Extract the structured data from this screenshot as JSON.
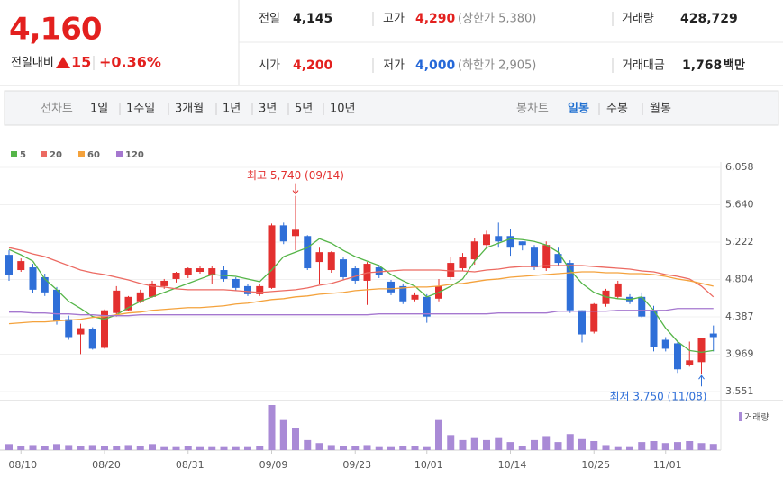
{
  "quote": {
    "price": "4,160",
    "change_label": "전일대비",
    "change": "15",
    "change_pct": "+0.36%"
  },
  "info": [
    {
      "label": "전일",
      "value": "4,145"
    },
    {
      "label": "고가",
      "value": "4,290",
      "note": "(상한가 5,380)"
    },
    {
      "label": "거래량",
      "value": "428,729"
    },
    {
      "label": "시가",
      "value": "4,200"
    },
    {
      "label": "저가",
      "value": "4,000",
      "note": "(하한가 2,905)"
    },
    {
      "label": "거래대금",
      "value": "1,768",
      "unit": "백만"
    }
  ],
  "tabs": {
    "line_label": "선차트",
    "line_periods": [
      "1일",
      "1주일",
      "3개월",
      "1년",
      "3년",
      "5년",
      "10년"
    ],
    "candle_label": "봉차트",
    "candle_periods": [
      "일봉",
      "주봉",
      "월봉"
    ]
  },
  "chart_data": {
    "type": "candlestick",
    "up_color": "#e3302f",
    "down_color": "#2f6fd8",
    "volume_color": "#a98ad6",
    "volume_label": "거래량",
    "categories": [
      null,
      "08/10",
      null,
      null,
      null,
      null,
      null,
      null,
      "08/20",
      null,
      null,
      null,
      null,
      null,
      null,
      "08/31",
      null,
      null,
      null,
      null,
      null,
      null,
      "09/09",
      null,
      null,
      null,
      null,
      null,
      null,
      "09/23",
      null,
      null,
      null,
      null,
      null,
      "10/01",
      null,
      null,
      null,
      null,
      null,
      null,
      "10/14",
      null,
      null,
      null,
      null,
      null,
      null,
      "10/25",
      null,
      null,
      null,
      null,
      null,
      "11/01",
      null,
      null,
      null,
      null
    ],
    "open": [
      5080,
      4910,
      4940,
      4830,
      4690,
      4360,
      4190,
      4250,
      4040,
      4430,
      4460,
      4560,
      4610,
      4730,
      4810,
      4850,
      4890,
      4860,
      4910,
      4810,
      4730,
      4640,
      4710,
      5410,
      5290,
      5290,
      5000,
      4910,
      5030,
      4930,
      4790,
      4940,
      4780,
      4730,
      4580,
      4610,
      4590,
      4830,
      4930,
      5030,
      5190,
      5290,
      5290,
      5230,
      5160,
      4930,
      5090,
      4990,
      4460,
      4220,
      4530,
      4610,
      4610,
      4610,
      4460,
      4130,
      4090,
      3850,
      3880,
      4200
    ],
    "high": [
      5130,
      5040,
      4980,
      4870,
      4720,
      4400,
      4310,
      4270,
      4470,
      4730,
      4620,
      4690,
      4790,
      4810,
      4890,
      4940,
      4950,
      4950,
      4960,
      4830,
      4750,
      4750,
      5430,
      5440,
      5740,
      5300,
      5160,
      5120,
      5050,
      4960,
      5000,
      4970,
      4800,
      4760,
      4660,
      4640,
      4810,
      5060,
      5100,
      5270,
      5350,
      5440,
      5370,
      5230,
      5190,
      5230,
      5160,
      5020,
      4460,
      4540,
      4700,
      4790,
      4640,
      4660,
      4510,
      4160,
      4110,
      4110,
      4150,
      4290
    ],
    "low": [
      4790,
      4890,
      4650,
      4620,
      4300,
      4130,
      3970,
      4020,
      4030,
      4390,
      4450,
      4540,
      4600,
      4700,
      4770,
      4820,
      4870,
      4750,
      4780,
      4680,
      4620,
      4620,
      4700,
      5200,
      5130,
      4910,
      4750,
      4880,
      4800,
      4760,
      4520,
      4820,
      4630,
      4530,
      4560,
      4320,
      4560,
      4800,
      4900,
      4970,
      5170,
      5160,
      5070,
      5130,
      4910,
      4900,
      4950,
      4430,
      4100,
      4200,
      4500,
      4590,
      4530,
      4380,
      4000,
      4000,
      3760,
      3830,
      3750,
      4000
    ],
    "close": [
      4860,
      5010,
      4690,
      4660,
      4340,
      4160,
      4260,
      4030,
      4460,
      4680,
      4610,
      4660,
      4760,
      4790,
      4880,
      4930,
      4930,
      4930,
      4810,
      4710,
      4640,
      4730,
      5410,
      5230,
      5360,
      4930,
      5110,
      5110,
      4830,
      4790,
      4980,
      4850,
      4660,
      4560,
      4630,
      4390,
      4730,
      4990,
      5060,
      5230,
      5310,
      5230,
      5160,
      5190,
      4940,
      5190,
      4990,
      4460,
      4190,
      4530,
      4680,
      4760,
      4560,
      4390,
      4050,
      4030,
      3800,
      3900,
      4150,
      4160
    ],
    "volume": [
      420000,
      280000,
      350000,
      280000,
      420000,
      350000,
      280000,
      350000,
      280000,
      280000,
      350000,
      280000,
      420000,
      210000,
      210000,
      280000,
      210000,
      210000,
      210000,
      210000,
      210000,
      280000,
      3150000,
      2100000,
      1540000,
      700000,
      490000,
      350000,
      280000,
      280000,
      350000,
      210000,
      210000,
      280000,
      280000,
      210000,
      2100000,
      1050000,
      700000,
      840000,
      700000,
      840000,
      560000,
      280000,
      700000,
      980000,
      560000,
      1120000,
      770000,
      630000,
      350000,
      210000,
      210000,
      560000,
      630000,
      490000,
      560000,
      630000,
      490000,
      428729
    ],
    "series": [
      {
        "name": "5",
        "color": "#55b548",
        "values": [
          5140,
          5080,
          5010,
          4810,
          4690,
          4560,
          4480,
          4390,
          4360,
          4410,
          4490,
          4560,
          4610,
          4660,
          4710,
          4760,
          4810,
          4860,
          4850,
          4840,
          4810,
          4780,
          4910,
          5060,
          5110,
          5160,
          5260,
          5210,
          5130,
          5060,
          5010,
          4960,
          4860,
          4790,
          4730,
          4610,
          4660,
          4730,
          4810,
          5010,
          5160,
          5210,
          5260,
          5250,
          5230,
          5190,
          5110,
          4910,
          4760,
          4660,
          4610,
          4590,
          4580,
          4610,
          4460,
          4260,
          4110,
          4010,
          3990,
          4010
        ]
      },
      {
        "name": "20",
        "color": "#ec6a62",
        "values": [
          5160,
          5130,
          5090,
          5060,
          5010,
          4960,
          4910,
          4880,
          4860,
          4830,
          4800,
          4760,
          4730,
          4720,
          4700,
          4690,
          4690,
          4690,
          4690,
          4680,
          4670,
          4660,
          4670,
          4680,
          4690,
          4710,
          4740,
          4760,
          4800,
          4840,
          4880,
          4890,
          4900,
          4910,
          4910,
          4910,
          4910,
          4900,
          4900,
          4890,
          4910,
          4920,
          4940,
          4950,
          4950,
          4960,
          4960,
          4960,
          4960,
          4950,
          4940,
          4930,
          4920,
          4900,
          4890,
          4860,
          4840,
          4810,
          4730,
          4610
        ]
      },
      {
        "name": "60",
        "color": "#f4a23c",
        "values": [
          4310,
          4320,
          4330,
          4330,
          4340,
          4350,
          4360,
          4380,
          4390,
          4410,
          4430,
          4440,
          4460,
          4470,
          4480,
          4490,
          4490,
          4500,
          4510,
          4530,
          4540,
          4560,
          4580,
          4590,
          4610,
          4620,
          4640,
          4650,
          4660,
          4680,
          4690,
          4700,
          4700,
          4710,
          4720,
          4720,
          4730,
          4750,
          4760,
          4780,
          4800,
          4810,
          4830,
          4840,
          4850,
          4860,
          4870,
          4880,
          4890,
          4890,
          4880,
          4880,
          4870,
          4870,
          4860,
          4840,
          4810,
          4790,
          4760,
          4730
        ]
      },
      {
        "name": "120",
        "color": "#a577cf",
        "values": [
          4440,
          4440,
          4430,
          4430,
          4420,
          4420,
          4410,
          4410,
          4400,
          4400,
          4400,
          4410,
          4410,
          4410,
          4410,
          4410,
          4410,
          4410,
          4410,
          4410,
          4410,
          4410,
          4410,
          4410,
          4410,
          4410,
          4410,
          4410,
          4410,
          4410,
          4410,
          4420,
          4420,
          4420,
          4420,
          4420,
          4420,
          4420,
          4420,
          4420,
          4420,
          4430,
          4430,
          4430,
          4430,
          4430,
          4450,
          4450,
          4450,
          4450,
          4450,
          4460,
          4460,
          4460,
          4460,
          4460,
          4480,
          4480,
          4480,
          4480
        ]
      }
    ],
    "ylim": [
      3551,
      6058
    ],
    "yticks": [
      {
        "value": 3551,
        "label": "3,551"
      },
      {
        "value": 3969,
        "label": "3,969"
      },
      {
        "value": 4387,
        "label": "4,387"
      },
      {
        "value": 4804,
        "label": "4,804"
      },
      {
        "value": 5222,
        "label": "5,222"
      },
      {
        "value": 5640,
        "label": "5,640"
      },
      {
        "value": 6058,
        "label": "6,058"
      }
    ],
    "annotations": [
      {
        "text": "최고 5,740 (09/14)"
      },
      {
        "text": "최저 3,750 (11/08)"
      }
    ]
  }
}
